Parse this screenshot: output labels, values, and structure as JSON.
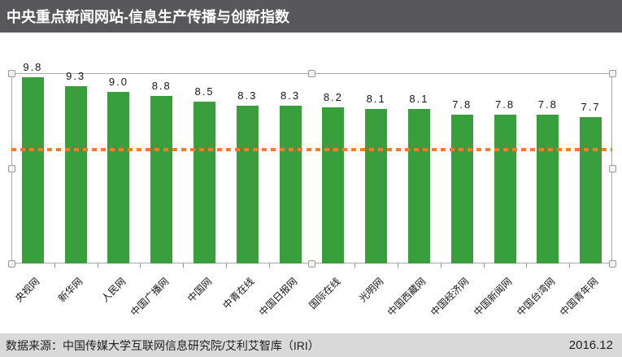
{
  "header": {
    "title": "中央重点新闻网站-信息生产传播与创新指数"
  },
  "footer": {
    "source": "数据来源：中国传媒大学互联网信息研究院/艾利艾智库（IRI）",
    "date": "2016.12"
  },
  "colors": {
    "header_bg": "#58585a",
    "header_text": "#ffffff",
    "footer_bg": "#d9d9d9",
    "footer_text": "#1f1f1f",
    "bar": "#399e3c",
    "reference_line": "#f07e26",
    "plot_border": "#a9a9a9",
    "axis": "#8e8e8e",
    "label_text": "#141414",
    "handle_fill": "#f2f2f2",
    "handle_border": "#9a9a9a"
  },
  "chart_data": {
    "type": "bar",
    "title": "中央重点新闻网站-信息生产传播与创新指数",
    "categories": [
      "央视网",
      "新华网",
      "人民网",
      "中国广播网",
      "中国网",
      "中青在线",
      "中国日报网",
      "国际在线",
      "光明网",
      "中国西藏网",
      "中国经济网",
      "中国新闻网",
      "中国台湾网",
      "中国青年网"
    ],
    "values": [
      9.8,
      9.3,
      9.0,
      8.8,
      8.5,
      8.3,
      8.3,
      8.2,
      8.1,
      8.1,
      7.8,
      7.8,
      7.8,
      7.7
    ],
    "ylim": [
      0,
      10
    ],
    "grid": false,
    "legend": false,
    "value_labels": true,
    "label_format": "0.0",
    "x_tick_label_rotation": 45,
    "bar_color": "#399e3c",
    "reference_line": {
      "value": 6.0,
      "style": "dashed",
      "color": "#f07e26"
    },
    "selection_handles_visible": true
  }
}
